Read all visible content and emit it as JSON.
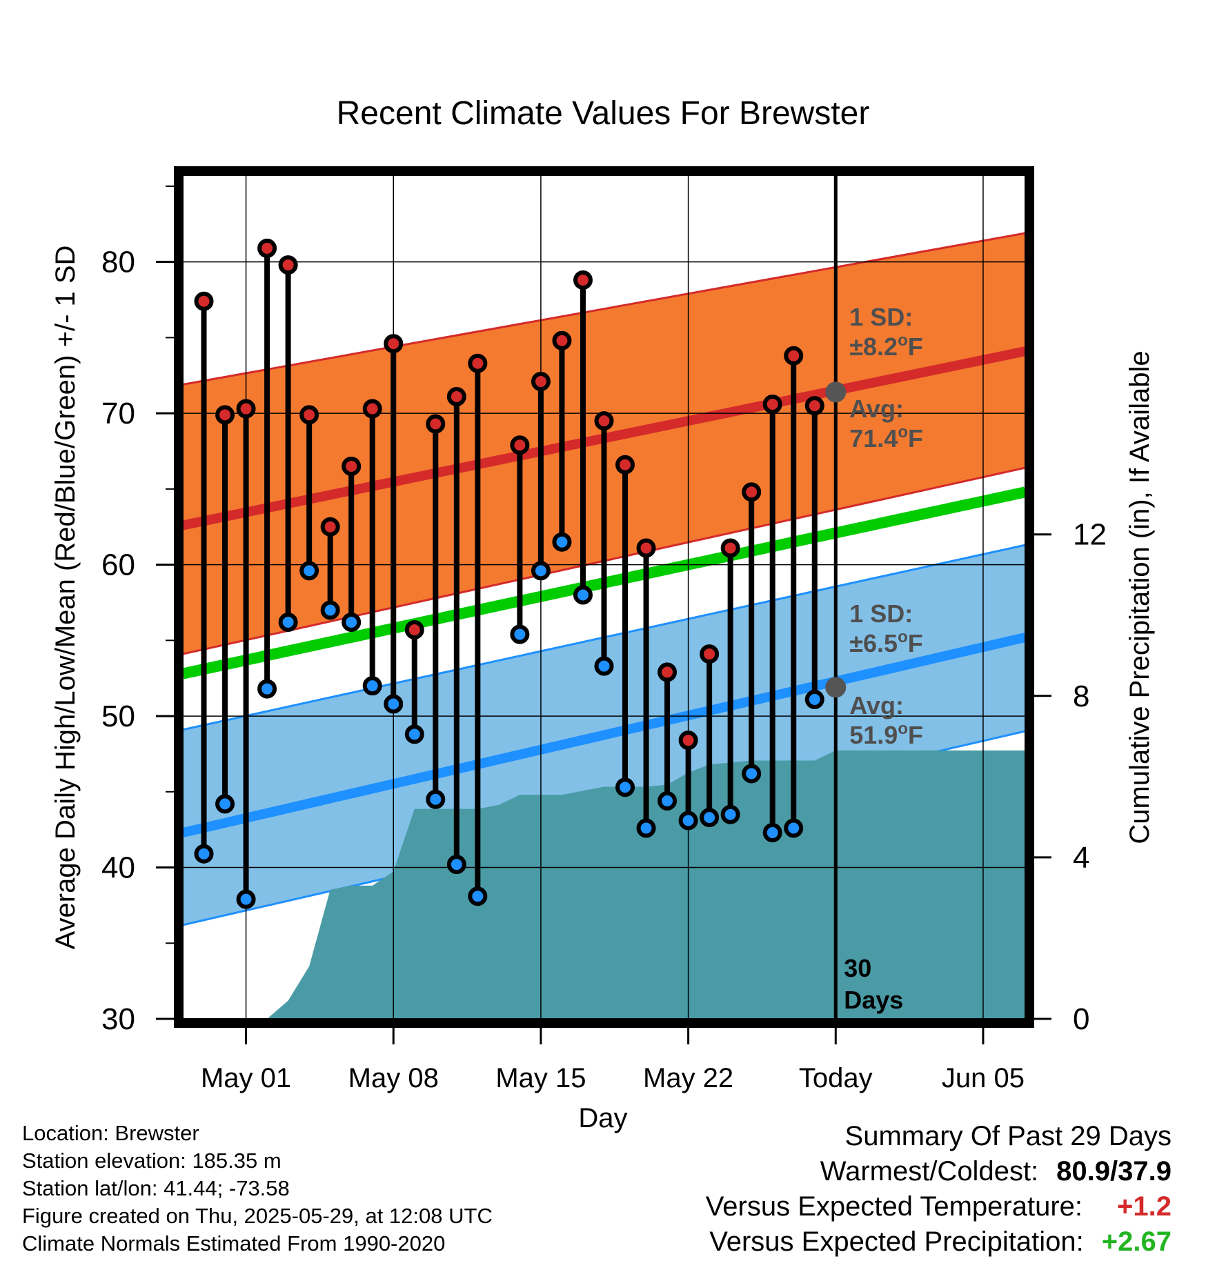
{
  "chart_data": {
    "type": "line",
    "title": "Recent Climate Values For Brewster",
    "xlabel": "Day",
    "ylabel": "Average Daily High/Low/Mean (Red/Blue/Green) +/- 1 SD",
    "y2label": "Cumulative Precipitation (in), If Available",
    "xlim": [
      "2025-04-28",
      "2025-06-07"
    ],
    "ylim": [
      30,
      86
    ],
    "y2lim": [
      0,
      21
    ],
    "x_ticks": [
      "May 01",
      "May 08",
      "May 15",
      "May 22",
      "Today",
      "Jun 05"
    ],
    "x_tick_dates": [
      "2025-05-01",
      "2025-05-08",
      "2025-05-15",
      "2025-05-22",
      "2025-05-29",
      "2025-06-05"
    ],
    "y_ticks": [
      30,
      40,
      50,
      60,
      70,
      80
    ],
    "y2_ticks": [
      0,
      4,
      8,
      12
    ],
    "grid": true,
    "colors": {
      "high_band": "#f47a30",
      "high_line": "#d42a2a",
      "low_band": "#82c0e8",
      "low_line": "#1e90ff",
      "mean_line": "#00cc00",
      "precip": "#4a9ba6",
      "high_marker": "#d42a2a",
      "low_marker": "#1e90ff",
      "avg_marker": "#555555",
      "annotation": "#4f4f4f",
      "positive_temp": "#d42a2a",
      "positive_precip": "#22b522"
    },
    "normals": {
      "start_date": "2025-04-28",
      "end_date": "2025-06-07",
      "high_avg": [
        62.6,
        74.1
      ],
      "high_sd_upper": [
        71.9,
        81.9
      ],
      "high_sd_lower": [
        54.1,
        66.4
      ],
      "low_avg": [
        42.3,
        55.2
      ],
      "low_sd_upper": [
        49.1,
        61.3
      ],
      "low_sd_lower": [
        36.2,
        49.0
      ],
      "mean_avg": [
        52.8,
        64.8
      ]
    },
    "series": [
      {
        "name": "High",
        "dates": [
          "2025-04-29",
          "2025-04-30",
          "2025-05-01",
          "2025-05-02",
          "2025-05-03",
          "2025-05-04",
          "2025-05-05",
          "2025-05-06",
          "2025-05-07",
          "2025-05-08",
          "2025-05-09",
          "2025-05-10",
          "2025-05-11",
          "2025-05-12",
          "2025-05-14",
          "2025-05-15",
          "2025-05-16",
          "2025-05-17",
          "2025-05-18",
          "2025-05-19",
          "2025-05-20",
          "2025-05-21",
          "2025-05-22",
          "2025-05-23",
          "2025-05-24",
          "2025-05-25",
          "2025-05-26",
          "2025-05-27",
          "2025-05-28"
        ],
        "values": [
          77.4,
          69.9,
          70.3,
          80.9,
          79.8,
          69.9,
          62.5,
          66.5,
          70.3,
          74.6,
          55.7,
          69.3,
          71.1,
          73.3,
          67.9,
          72.1,
          74.8,
          78.8,
          69.5,
          66.6,
          61.1,
          52.9,
          48.4,
          54.1,
          61.1,
          64.8,
          70.6,
          73.8,
          70.5
        ]
      },
      {
        "name": "Low",
        "dates": [
          "2025-04-29",
          "2025-04-30",
          "2025-05-01",
          "2025-05-02",
          "2025-05-03",
          "2025-05-04",
          "2025-05-05",
          "2025-05-06",
          "2025-05-07",
          "2025-05-08",
          "2025-05-09",
          "2025-05-10",
          "2025-05-11",
          "2025-05-12",
          "2025-05-14",
          "2025-05-15",
          "2025-05-16",
          "2025-05-17",
          "2025-05-18",
          "2025-05-19",
          "2025-05-20",
          "2025-05-21",
          "2025-05-22",
          "2025-05-23",
          "2025-05-24",
          "2025-05-25",
          "2025-05-26",
          "2025-05-27",
          "2025-05-28"
        ],
        "values": [
          40.9,
          44.2,
          37.9,
          51.8,
          56.2,
          59.6,
          57.0,
          56.2,
          52.0,
          50.8,
          48.8,
          44.5,
          40.2,
          38.1,
          55.4,
          59.6,
          61.5,
          58.0,
          53.3,
          45.3,
          42.6,
          44.4,
          43.1,
          43.3,
          43.5,
          46.2,
          42.3,
          42.6,
          51.1
        ]
      },
      {
        "name": "Cumulative Precipitation",
        "dates": [
          "2025-05-02",
          "2025-05-03",
          "2025-05-04",
          "2025-05-05",
          "2025-05-06",
          "2025-05-07",
          "2025-05-08",
          "2025-05-09",
          "2025-05-10",
          "2025-05-11",
          "2025-05-12",
          "2025-05-13",
          "2025-05-14",
          "2025-05-15",
          "2025-05-16",
          "2025-05-17",
          "2025-05-18",
          "2025-05-19",
          "2025-05-20",
          "2025-05-21",
          "2025-05-22",
          "2025-05-23",
          "2025-05-24",
          "2025-05-25",
          "2025-05-26",
          "2025-05-27",
          "2025-05-28",
          "2025-05-29",
          "2025-06-07"
        ],
        "values": [
          0.0,
          0.45,
          1.3,
          3.2,
          3.3,
          3.3,
          3.65,
          5.2,
          5.2,
          5.2,
          5.2,
          5.3,
          5.55,
          5.55,
          5.55,
          5.65,
          5.75,
          5.75,
          5.75,
          5.8,
          6.1,
          6.3,
          6.35,
          6.4,
          6.4,
          6.4,
          6.4,
          6.65,
          6.65
        ]
      }
    ],
    "today_marker": {
      "date": "2025-05-29",
      "label_number": "30",
      "label_unit": "Days"
    },
    "annotations": {
      "high_sd_title": "1 SD:",
      "high_sd_value": "±8.2",
      "high_sd_unit": "F",
      "high_avg_title": "Avg:",
      "high_avg_value": "71.4",
      "high_avg_unit": "F",
      "high_avg_point": 71.4,
      "low_sd_title": "1 SD:",
      "low_sd_value": "±6.5",
      "low_sd_unit": "F",
      "low_avg_title": "Avg:",
      "low_avg_value": "51.9",
      "low_avg_unit": "F",
      "low_avg_point": 51.9,
      "degree": "o"
    }
  },
  "footer": {
    "location": "Location: Brewster",
    "elevation": "Station elevation: 185.35 m",
    "latlon": "Station lat/lon: 41.44; -73.58",
    "created": "Figure created on Thu, 2025-05-29, at 12:08 UTC",
    "normals": "Climate Normals Estimated From 1990-2020"
  },
  "summary": {
    "title": "Summary Of Past 29 Days",
    "warm_cold_label": "Warmest/Coldest:",
    "warm_cold_value": "80.9/37.9",
    "temp_label": "Versus Expected Temperature:",
    "temp_value": "+1.2",
    "precip_label": "Versus Expected Precipitation:",
    "precip_value": "+2.67"
  }
}
